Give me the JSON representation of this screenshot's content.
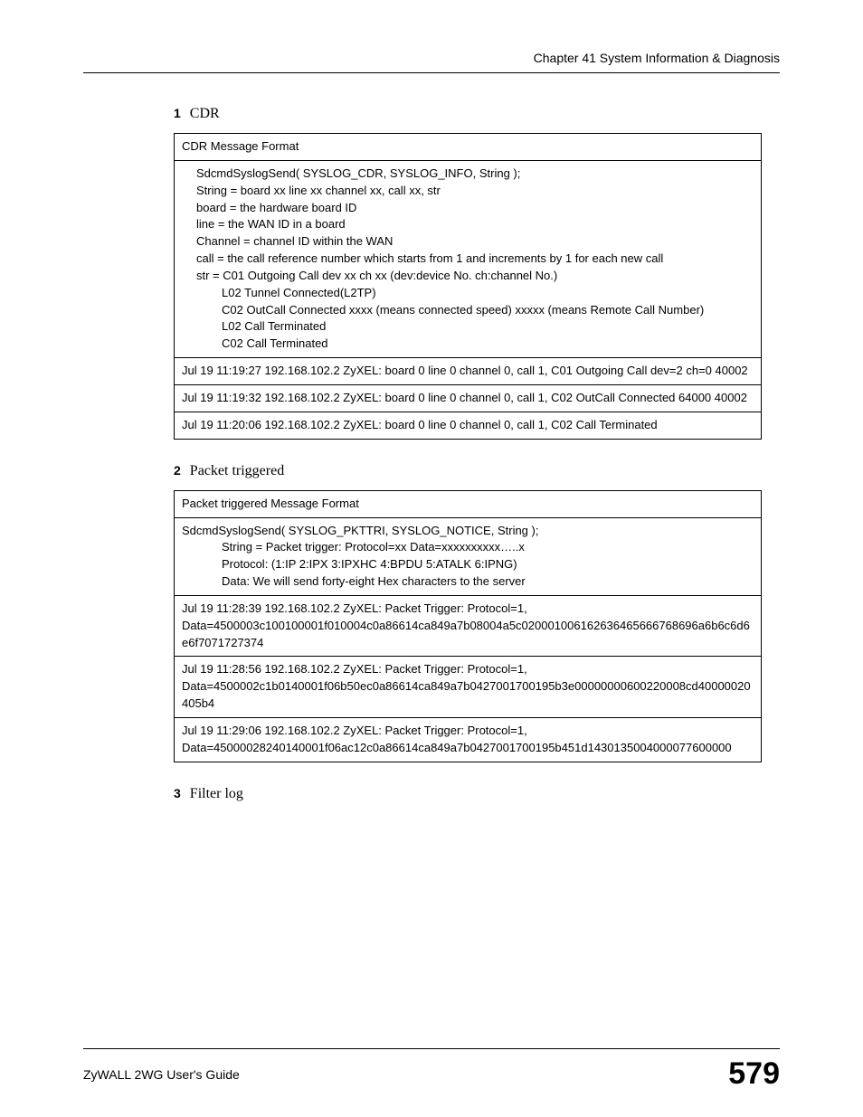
{
  "header": {
    "chapter": "Chapter 41 System Information & Diagnosis"
  },
  "sections": [
    {
      "num": "1",
      "title": "CDR"
    },
    {
      "num": "2",
      "title": "Packet triggered"
    },
    {
      "num": "3",
      "title": "Filter log"
    }
  ],
  "cdr_table": {
    "header": "CDR Message Format",
    "body_lines": [
      {
        "text": "SdcmdSyslogSend( SYSLOG_CDR, SYSLOG_INFO, String );",
        "indent": 1
      },
      {
        "text": "String = board xx line xx channel xx, call xx, str",
        "indent": 1
      },
      {
        "text": "board = the hardware board ID",
        "indent": 1
      },
      {
        "text": "line = the WAN ID in a board",
        "indent": 1
      },
      {
        "text": "Channel = channel ID within the WAN",
        "indent": 1
      },
      {
        "text": "call = the call reference number which starts from 1 and increments by 1 for each new call",
        "indent": 1
      },
      {
        "text": "str = C01 Outgoing Call dev xx ch xx (dev:device No. ch:channel No.)",
        "indent": 1
      },
      {
        "text": "L02 Tunnel Connected(L2TP)",
        "indent": 2
      },
      {
        "text": "C02 OutCall Connected xxxx (means connected speed) xxxxx (means Remote Call Number)",
        "indent": 2
      },
      {
        "text": "L02 Call Terminated",
        "indent": 2
      },
      {
        "text": "C02 Call Terminated",
        "indent": 2
      }
    ],
    "log_rows": [
      "Jul 19 11:19:27 192.168.102.2 ZyXEL: board 0 line 0 channel 0, call 1, C01 Outgoing Call dev=2 ch=0 40002",
      "Jul 19 11:19:32 192.168.102.2 ZyXEL: board 0 line 0 channel 0, call 1, C02 OutCall Connected 64000 40002",
      "Jul 19 11:20:06 192.168.102.2 ZyXEL: board 0 line 0 channel 0, call 1, C02 Call Terminated"
    ]
  },
  "packet_table": {
    "header": "Packet triggered Message Format",
    "body_lines": [
      {
        "text": "SdcmdSyslogSend( SYSLOG_PKTTRI, SYSLOG_NOTICE, String );",
        "indent": 0
      },
      {
        "text": "String = Packet trigger: Protocol=xx Data=xxxxxxxxxx…..x",
        "indent": 2
      },
      {
        "text": "Protocol: (1:IP 2:IPX 3:IPXHC 4:BPDU 5:ATALK 6:IPNG)",
        "indent": 2
      },
      {
        "text": "Data: We will send forty-eight Hex characters to the server",
        "indent": 2
      }
    ],
    "log_rows": [
      "Jul 19 11:28:39 192.168.102.2 ZyXEL: Packet Trigger: Protocol=1, Data=4500003c100100001f010004c0a86614ca849a7b08004a5c020001006162636465666768696a6b6c6d6e6f7071727374",
      "Jul 19 11:28:56 192.168.102.2 ZyXEL: Packet Trigger: Protocol=1, Data=4500002c1b0140001f06b50ec0a86614ca849a7b0427001700195b3e00000000600220008cd40000020405b4",
      "Jul 19 11:29:06 192.168.102.2 ZyXEL: Packet Trigger: Protocol=1, Data=45000028240140001f06ac12c0a86614ca849a7b0427001700195b451d1430135004000077600000"
    ]
  },
  "footer": {
    "guide": "ZyWALL 2WG User's Guide",
    "page": "579"
  },
  "styles": {
    "body_font": "Times New Roman",
    "table_font": "Arial",
    "table_font_size_pt": 10,
    "heading_font_size_pt": 12,
    "page_number_font_size_pt": 26,
    "border_color": "#000000",
    "background_color": "#ffffff",
    "text_color": "#000000"
  }
}
